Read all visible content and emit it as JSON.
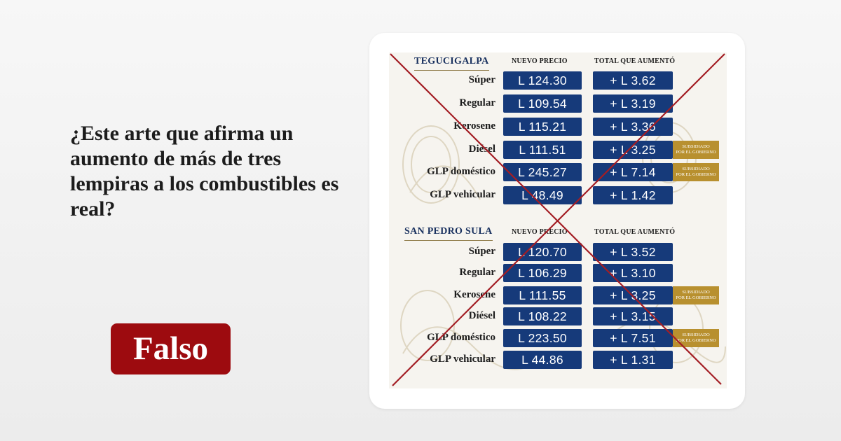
{
  "headline": "¿Este arte que afirma un aumento de más de tres lempiras a los combustibles es real?",
  "verdict": {
    "label": "Falso",
    "color": "#9d0b0f"
  },
  "infographic": {
    "column_headers": {
      "price": "NUEVO PRECIO",
      "increase": "TOTAL QUE AUMENTÓ"
    },
    "subsidy_label": {
      "line1": "SUBSIDIADO",
      "line2": "POR EL GOBIERNO"
    },
    "box_color": "#163a7a",
    "cross_color": "#a31d24",
    "sections": [
      {
        "city": "TEGUCIGALPA",
        "rows": [
          {
            "fuel": "Súper",
            "price": "L 124.30",
            "increase": "+ L 3.62",
            "subsidized": false
          },
          {
            "fuel": "Regular",
            "price": "L 109.54",
            "increase": "+ L 3.19",
            "subsidized": false
          },
          {
            "fuel": "Kerosene",
            "price": "L 115.21",
            "increase": "+ L 3.36",
            "subsidized": false
          },
          {
            "fuel": "Diésel",
            "price": "L 111.51",
            "increase": "+ L 3.25",
            "subsidized": true
          },
          {
            "fuel": "GLP doméstico",
            "price": "L 245.27",
            "increase": "+ L 7.14",
            "subsidized": true
          },
          {
            "fuel": "GLP vehicular",
            "price": "L 48.49",
            "increase": "+ L 1.42",
            "subsidized": false
          }
        ]
      },
      {
        "city": "SAN PEDRO SULA",
        "rows": [
          {
            "fuel": "Súper",
            "price": "L 120.70",
            "increase": "+ L 3.52",
            "subsidized": false
          },
          {
            "fuel": "Regular",
            "price": "L 106.29",
            "increase": "+ L 3.10",
            "subsidized": false
          },
          {
            "fuel": "Kerosene",
            "price": "L 111.55",
            "increase": "+ L 3.25",
            "subsidized": true
          },
          {
            "fuel": "Diésel",
            "price": "L 108.22",
            "increase": "+ L 3.15",
            "subsidized": false
          },
          {
            "fuel": "GLP doméstico",
            "price": "L 223.50",
            "increase": "+ L 7.51",
            "subsidized": true
          },
          {
            "fuel": "GLP vehicular",
            "price": "L 44.86",
            "increase": "+ L 1.31",
            "subsidized": false
          }
        ]
      }
    ]
  }
}
